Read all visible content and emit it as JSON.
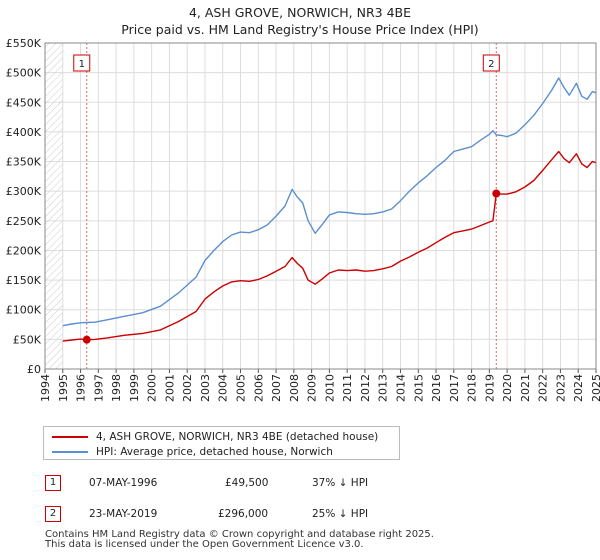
{
  "title_line1": "4, ASH GROVE, NORWICH, NR3 4BE",
  "title_line2": "Price paid vs. HM Land Registry's House Price Index (HPI)",
  "chart_data": {
    "type": "line",
    "title": "4, ASH GROVE, NORWICH, NR3 4BE — Price paid vs. HM Land Registry's House Price Index (HPI)",
    "xlabel": "",
    "ylabel": "",
    "xlim": [
      1994,
      2025
    ],
    "ylim": [
      0,
      550000
    ],
    "yticks": [
      {
        "value": 0,
        "label": "£0"
      },
      {
        "value": 50000,
        "label": "£50K"
      },
      {
        "value": 100000,
        "label": "£100K"
      },
      {
        "value": 150000,
        "label": "£150K"
      },
      {
        "value": 200000,
        "label": "£200K"
      },
      {
        "value": 250000,
        "label": "£250K"
      },
      {
        "value": 300000,
        "label": "£300K"
      },
      {
        "value": 350000,
        "label": "£350K"
      },
      {
        "value": 400000,
        "label": "£400K"
      },
      {
        "value": 450000,
        "label": "£450K"
      },
      {
        "value": 500000,
        "label": "£500K"
      },
      {
        "value": 550000,
        "label": "£550K"
      }
    ],
    "xticks": [
      "1994",
      "1995",
      "1996",
      "1997",
      "1998",
      "1999",
      "2000",
      "2001",
      "2002",
      "2003",
      "2004",
      "2005",
      "2006",
      "2007",
      "2008",
      "2009",
      "2010",
      "2011",
      "2012",
      "2013",
      "2014",
      "2015",
      "2016",
      "2017",
      "2018",
      "2019",
      "2020",
      "2021",
      "2022",
      "2023",
      "2024",
      "2025"
    ],
    "series": [
      {
        "name": "4, ASH GROVE, NORWICH, NR3 4BE (detached house)",
        "color": "#cc0000",
        "points": [
          [
            1995.0,
            47000
          ],
          [
            1995.5,
            49000
          ],
          [
            1996.0,
            50500
          ],
          [
            1996.35,
            49500
          ],
          [
            1996.8,
            50000
          ],
          [
            1997.5,
            52500
          ],
          [
            1998.5,
            57000
          ],
          [
            1999.5,
            60000
          ],
          [
            2000.5,
            66000
          ],
          [
            2001.5,
            80000
          ],
          [
            2002.5,
            97000
          ],
          [
            2003.0,
            118000
          ],
          [
            2003.5,
            130000
          ],
          [
            2004.0,
            140000
          ],
          [
            2004.5,
            147000
          ],
          [
            2005.0,
            149000
          ],
          [
            2005.5,
            148000
          ],
          [
            2006.0,
            151000
          ],
          [
            2006.5,
            157000
          ],
          [
            2007.0,
            165000
          ],
          [
            2007.5,
            173000
          ],
          [
            2007.9,
            188000
          ],
          [
            2008.2,
            178000
          ],
          [
            2008.5,
            170000
          ],
          [
            2008.8,
            150000
          ],
          [
            2009.2,
            143000
          ],
          [
            2009.6,
            152000
          ],
          [
            2010.0,
            162000
          ],
          [
            2010.5,
            167000
          ],
          [
            2011.0,
            166000
          ],
          [
            2011.5,
            167000
          ],
          [
            2012.0,
            165000
          ],
          [
            2012.5,
            166000
          ],
          [
            2013.0,
            169000
          ],
          [
            2013.5,
            173000
          ],
          [
            2014.0,
            182000
          ],
          [
            2014.5,
            189000
          ],
          [
            2015.0,
            197000
          ],
          [
            2015.5,
            204000
          ],
          [
            2016.0,
            213000
          ],
          [
            2016.5,
            222000
          ],
          [
            2017.0,
            230000
          ],
          [
            2017.5,
            233000
          ],
          [
            2018.0,
            236000
          ],
          [
            2018.5,
            242000
          ],
          [
            2019.0,
            248000
          ],
          [
            2019.2,
            250000
          ],
          [
            2019.39,
            296000
          ],
          [
            2019.7,
            295000
          ],
          [
            2020.0,
            295000
          ],
          [
            2020.5,
            299000
          ],
          [
            2021.0,
            307000
          ],
          [
            2021.5,
            318000
          ],
          [
            2022.0,
            335000
          ],
          [
            2022.5,
            353000
          ],
          [
            2022.9,
            367000
          ],
          [
            2023.2,
            355000
          ],
          [
            2023.5,
            348000
          ],
          [
            2023.9,
            363000
          ],
          [
            2024.2,
            346000
          ],
          [
            2024.5,
            340000
          ],
          [
            2024.8,
            350000
          ],
          [
            2025.0,
            348000
          ]
        ]
      },
      {
        "name": "HPI: Average price, detached house, Norwich",
        "color": "#5b8fd0",
        "points": [
          [
            1995.0,
            73000
          ],
          [
            1995.5,
            76000
          ],
          [
            1996.0,
            78000
          ],
          [
            1996.35,
            78500
          ],
          [
            1996.8,
            79000
          ],
          [
            1997.5,
            83000
          ],
          [
            1998.5,
            89000
          ],
          [
            1999.5,
            95000
          ],
          [
            2000.5,
            106000
          ],
          [
            2001.5,
            128000
          ],
          [
            2002.5,
            155000
          ],
          [
            2003.0,
            183000
          ],
          [
            2003.5,
            200000
          ],
          [
            2004.0,
            215000
          ],
          [
            2004.5,
            226000
          ],
          [
            2005.0,
            231000
          ],
          [
            2005.5,
            230000
          ],
          [
            2006.0,
            235000
          ],
          [
            2006.5,
            243000
          ],
          [
            2007.0,
            258000
          ],
          [
            2007.5,
            275000
          ],
          [
            2007.9,
            303000
          ],
          [
            2008.2,
            290000
          ],
          [
            2008.5,
            280000
          ],
          [
            2008.8,
            250000
          ],
          [
            2009.2,
            229000
          ],
          [
            2009.6,
            244000
          ],
          [
            2010.0,
            260000
          ],
          [
            2010.5,
            265000
          ],
          [
            2011.0,
            264000
          ],
          [
            2011.5,
            262000
          ],
          [
            2012.0,
            261000
          ],
          [
            2012.5,
            262000
          ],
          [
            2013.0,
            265000
          ],
          [
            2013.5,
            270000
          ],
          [
            2014.0,
            284000
          ],
          [
            2014.5,
            300000
          ],
          [
            2015.0,
            314000
          ],
          [
            2015.5,
            326000
          ],
          [
            2016.0,
            340000
          ],
          [
            2016.5,
            352000
          ],
          [
            2017.0,
            367000
          ],
          [
            2017.5,
            371000
          ],
          [
            2018.0,
            375000
          ],
          [
            2018.5,
            386000
          ],
          [
            2019.0,
            396000
          ],
          [
            2019.2,
            402000
          ],
          [
            2019.39,
            395000
          ],
          [
            2019.7,
            394000
          ],
          [
            2020.0,
            392000
          ],
          [
            2020.5,
            398000
          ],
          [
            2021.0,
            412000
          ],
          [
            2021.5,
            428000
          ],
          [
            2022.0,
            448000
          ],
          [
            2022.5,
            470000
          ],
          [
            2022.9,
            491000
          ],
          [
            2023.2,
            475000
          ],
          [
            2023.5,
            462000
          ],
          [
            2023.9,
            482000
          ],
          [
            2024.2,
            460000
          ],
          [
            2024.5,
            455000
          ],
          [
            2024.8,
            468000
          ],
          [
            2025.0,
            466000
          ]
        ]
      }
    ],
    "sales": [
      {
        "id": "1",
        "x": 1996.35,
        "price": 49500
      },
      {
        "id": "2",
        "x": 2019.39,
        "price": 296000
      }
    ],
    "legend_position": "bottom"
  },
  "legend": {
    "items": [
      {
        "label": "4, ASH GROVE, NORWICH, NR3 4BE (detached house)",
        "color": "#cc0000"
      },
      {
        "label": "HPI: Average price, detached house, Norwich",
        "color": "#5b8fd0"
      }
    ]
  },
  "sales_table": [
    {
      "id": "1",
      "date": "07-MAY-1996",
      "price": "£49,500",
      "hpi": "37% ↓ HPI"
    },
    {
      "id": "2",
      "date": "23-MAY-2019",
      "price": "£296,000",
      "hpi": "25% ↓ HPI"
    }
  ],
  "footer": {
    "line1": "Contains HM Land Registry data © Crown copyright and database right 2025.",
    "line2": "This data is licensed under the Open Government Licence v3.0."
  }
}
